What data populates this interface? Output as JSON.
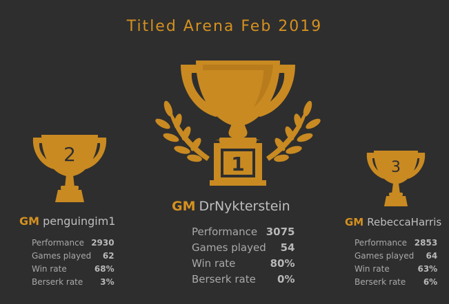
{
  "title": "Titled Arena Feb 2019",
  "colors": {
    "background": "#2e2e2e",
    "accent": "#d59120",
    "text": "#a9a9a9"
  },
  "podium": [
    {
      "rank": "1",
      "title": "GM",
      "username": "DrNykterstein",
      "stats": [
        {
          "label": "Performance",
          "value": "3075"
        },
        {
          "label": "Games played",
          "value": "54"
        },
        {
          "label": "Win rate",
          "value": "80%"
        },
        {
          "label": "Berserk rate",
          "value": "0%"
        }
      ]
    },
    {
      "rank": "2",
      "title": "GM",
      "username": "penguingim1",
      "stats": [
        {
          "label": "Performance",
          "value": "2930"
        },
        {
          "label": "Games played",
          "value": "62"
        },
        {
          "label": "Win rate",
          "value": "68%"
        },
        {
          "label": "Berserk rate",
          "value": "3%"
        }
      ]
    },
    {
      "rank": "3",
      "title": "GM",
      "username": "RebeccaHarris",
      "stats": [
        {
          "label": "Performance",
          "value": "2853"
        },
        {
          "label": "Games played",
          "value": "64"
        },
        {
          "label": "Win rate",
          "value": "63%"
        },
        {
          "label": "Berserk rate",
          "value": "6%"
        }
      ]
    }
  ]
}
